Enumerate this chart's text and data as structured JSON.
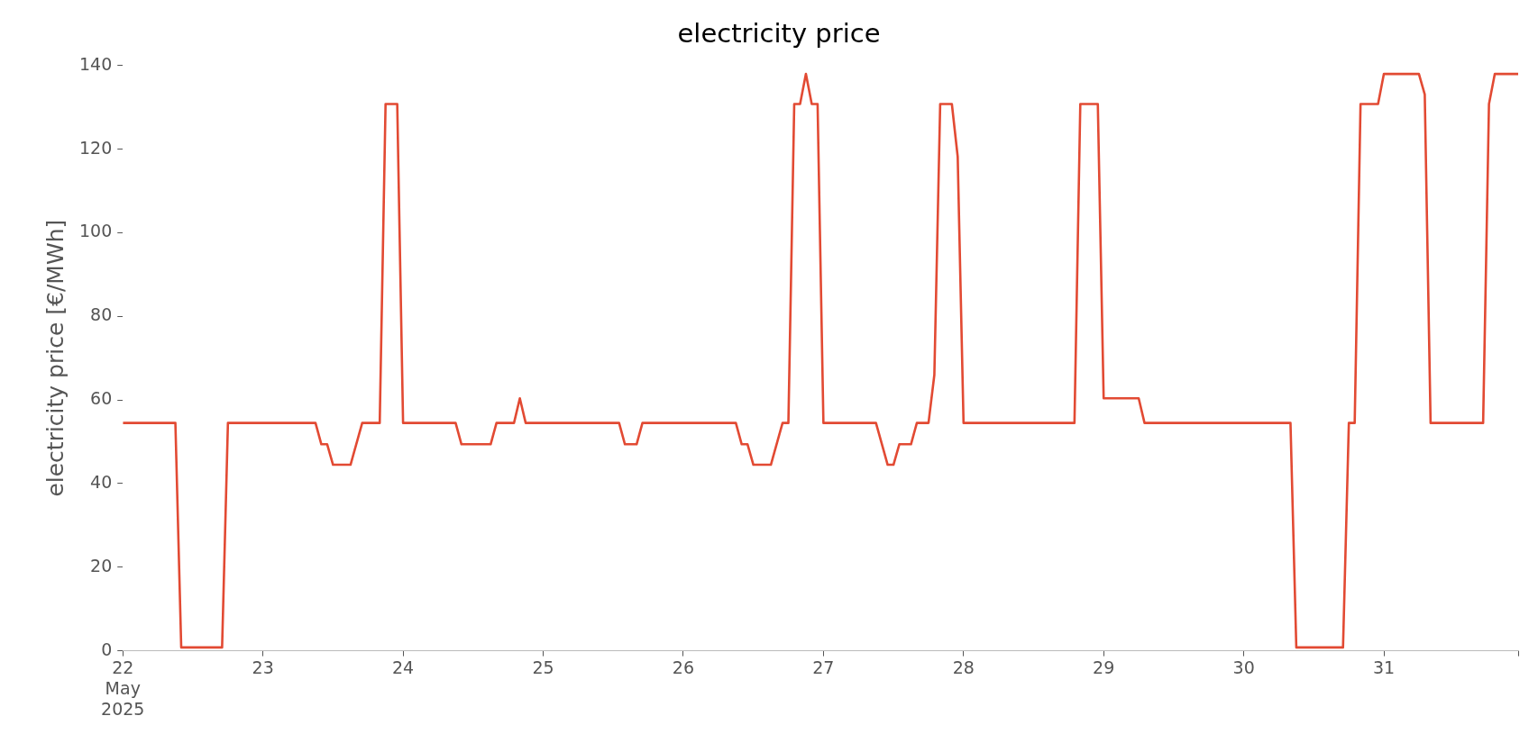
{
  "chart_data": {
    "type": "line",
    "title": "electricity price",
    "ylabel": "electricity price [€/MWh]",
    "x": [
      "2025-05-22T00:00",
      "2025-05-22T09:00",
      "2025-05-22T10:00",
      "2025-05-22T17:00",
      "2025-05-22T18:00",
      "2025-05-23T09:00",
      "2025-05-23T10:00",
      "2025-05-23T11:00",
      "2025-05-23T12:00",
      "2025-05-23T15:00",
      "2025-05-23T17:00",
      "2025-05-23T20:00",
      "2025-05-23T21:00",
      "2025-05-23T23:00",
      "2025-05-24T00:00",
      "2025-05-24T09:00",
      "2025-05-24T10:00",
      "2025-05-24T15:00",
      "2025-05-24T16:00",
      "2025-05-24T19:00",
      "2025-05-24T20:00",
      "2025-05-24T21:00",
      "2025-05-25T13:00",
      "2025-05-25T14:00",
      "2025-05-25T16:00",
      "2025-05-25T17:00",
      "2025-05-26T09:00",
      "2025-05-26T10:00",
      "2025-05-26T11:00",
      "2025-05-26T12:00",
      "2025-05-26T15:00",
      "2025-05-26T17:00",
      "2025-05-26T18:00",
      "2025-05-26T19:00",
      "2025-05-26T20:00",
      "2025-05-26T21:00",
      "2025-05-26T22:00",
      "2025-05-26T23:00",
      "2025-05-27T00:00",
      "2025-05-27T09:00",
      "2025-05-27T11:00",
      "2025-05-27T12:00",
      "2025-05-27T13:00",
      "2025-05-27T15:00",
      "2025-05-27T16:00",
      "2025-05-27T18:00",
      "2025-05-27T19:00",
      "2025-05-27T20:00",
      "2025-05-27T22:00",
      "2025-05-27T23:00",
      "2025-05-28T00:00",
      "2025-05-28T19:00",
      "2025-05-28T20:00",
      "2025-05-28T23:00",
      "2025-05-29T00:00",
      "2025-05-29T06:00",
      "2025-05-29T07:00",
      "2025-05-30T08:00",
      "2025-05-30T09:00",
      "2025-05-30T17:00",
      "2025-05-30T18:00",
      "2025-05-30T19:00",
      "2025-05-30T20:00",
      "2025-05-30T23:00",
      "2025-05-31T00:00",
      "2025-05-31T06:00",
      "2025-05-31T07:00",
      "2025-05-31T08:00",
      "2025-05-31T17:00",
      "2025-05-31T18:00",
      "2025-05-31T19:00",
      "2025-05-31T23:00"
    ],
    "series": [
      {
        "color": "#e24a33",
        "values": [
          54.5,
          54.5,
          0.8,
          0.8,
          54.5,
          54.5,
          49.4,
          49.4,
          44.5,
          44.5,
          54.5,
          54.5,
          130.8,
          130.8,
          54.5,
          54.5,
          49.4,
          49.4,
          54.5,
          54.5,
          60.4,
          54.5,
          54.5,
          49.4,
          49.4,
          54.5,
          54.5,
          49.4,
          49.4,
          44.5,
          44.5,
          54.5,
          54.5,
          130.8,
          130.8,
          138,
          130.8,
          130.8,
          54.5,
          54.5,
          44.5,
          44.5,
          49.4,
          49.4,
          54.5,
          54.5,
          66,
          130.8,
          130.8,
          118.2,
          54.5,
          54.5,
          130.8,
          130.8,
          60.4,
          60.4,
          54.5,
          54.5,
          0.8,
          0.8,
          54.5,
          54.5,
          130.8,
          130.8,
          138,
          138,
          133.1,
          54.5,
          54.5,
          130.8,
          138,
          138
        ]
      }
    ],
    "xticks": [
      {
        "value": "2025-05-22",
        "label": "22\nMay\n2025"
      },
      {
        "value": "2025-05-23",
        "label": "23"
      },
      {
        "value": "2025-05-24",
        "label": "24"
      },
      {
        "value": "2025-05-25",
        "label": "25"
      },
      {
        "value": "2025-05-26",
        "label": "26"
      },
      {
        "value": "2025-05-27",
        "label": "27"
      },
      {
        "value": "2025-05-28",
        "label": "28"
      },
      {
        "value": "2025-05-29",
        "label": "29"
      },
      {
        "value": "2025-05-30",
        "label": "30"
      },
      {
        "value": "2025-05-31",
        "label": "31"
      },
      {
        "value": "2025-05-31T23:00",
        "label": null
      }
    ],
    "xlim": [
      "2025-05-22T00:00",
      "2025-05-31T23:00"
    ],
    "ylim": [
      0,
      140
    ],
    "yticks": [
      0,
      20,
      40,
      60,
      80,
      100,
      120,
      140
    ],
    "grid": false,
    "legend": false,
    "marker": "none",
    "line_style": "solid"
  }
}
